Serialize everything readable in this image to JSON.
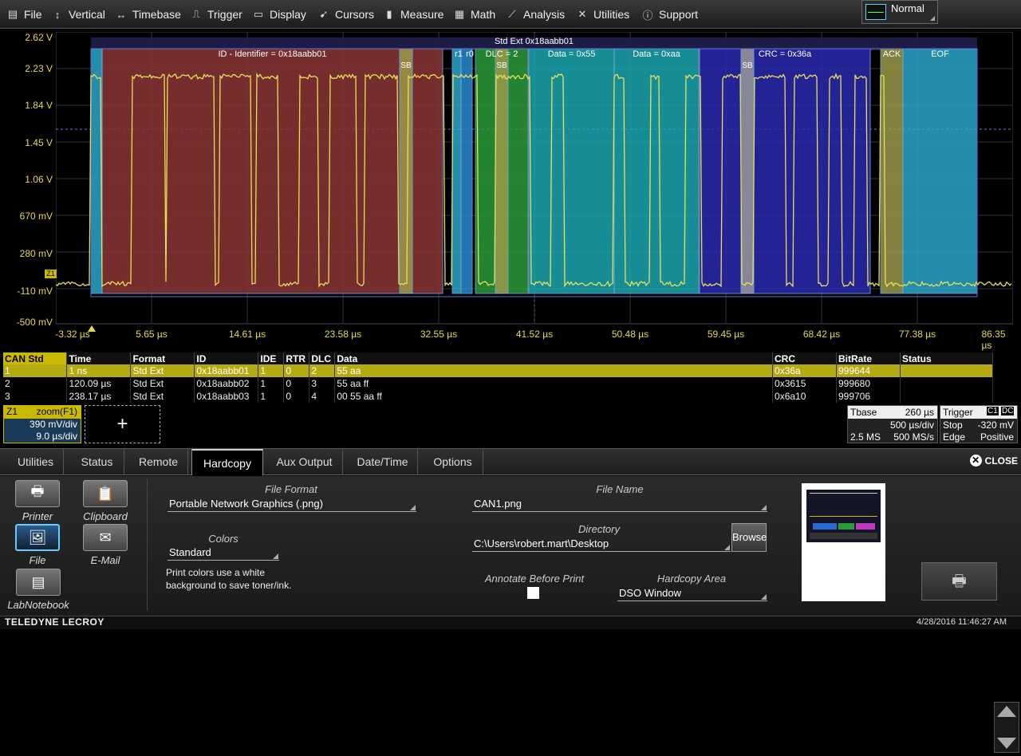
{
  "menu": {
    "items": [
      {
        "label": "File",
        "icon": "file-icon"
      },
      {
        "label": "Vertical",
        "icon": "vertical-icon"
      },
      {
        "label": "Timebase",
        "icon": "timebase-icon"
      },
      {
        "label": "Trigger",
        "icon": "trigger-icon"
      },
      {
        "label": "Display",
        "icon": "display-icon"
      },
      {
        "label": "Cursors",
        "icon": "cursors-icon"
      },
      {
        "label": "Measure",
        "icon": "measure-icon"
      },
      {
        "label": "Math",
        "icon": "math-icon"
      },
      {
        "label": "Analysis",
        "icon": "analysis-icon"
      },
      {
        "label": "Utilities",
        "icon": "utilities-icon"
      },
      {
        "label": "Support",
        "icon": "support-icon"
      }
    ],
    "mode": "Normal"
  },
  "plot": {
    "y_labels": [
      "2.62 V",
      "2.23 V",
      "1.84 V",
      "1.45 V",
      "1.06 V",
      "670 mV",
      "280 mV",
      "-110 mV",
      "-500 mV"
    ],
    "x_labels": [
      "-3.32 µs",
      "5.65 µs",
      "14.61 µs",
      "23.58 µs",
      "32.55 µs",
      "41.52 µs",
      "50.48 µs",
      "59.45 µs",
      "68.42 µs",
      "77.38 µs",
      "86.35 µs"
    ],
    "trace_label": "Z1",
    "frame_label": "Std Ext 0x18aabb01",
    "segments": [
      {
        "label": "",
        "color": "#2aa6c9"
      },
      {
        "label": "ID - Identifier = 0x18aabb01",
        "color": "#8a3535"
      },
      {
        "label": "SB",
        "color": "#9a9a4a"
      },
      {
        "label": "r1",
        "color": "#2aa6c9"
      },
      {
        "label": "r0",
        "color": "#2a88d0"
      },
      {
        "label": "DLC = 2",
        "color": "#2a9a3a"
      },
      {
        "label": "SB",
        "color": "#9a9a4a"
      },
      {
        "label": "Data = 0x55",
        "color": "#1aa6b0"
      },
      {
        "label": "Data = 0xaa",
        "color": "#1aa6b0"
      },
      {
        "label": "CRC = 0x36a",
        "color": "#2a2ab0"
      },
      {
        "label": "SB",
        "color": "#999"
      },
      {
        "label": "ACK",
        "color": "#9a9a4a"
      },
      {
        "label": "EOF",
        "color": "#2aa6c9"
      }
    ]
  },
  "table": {
    "headers": [
      "CAN Std",
      "Time",
      "Format",
      "ID",
      "IDE",
      "RTR",
      "DLC",
      "Data",
      "CRC",
      "BitRate",
      "Status"
    ],
    "rows": [
      [
        "1",
        "1 ns",
        "Std Ext",
        "0x18aabb01",
        "1",
        "0",
        "2",
        "55 aa",
        "0x36a",
        "999644",
        ""
      ],
      [
        "2",
        "120.09 µs",
        "Std Ext",
        "0x18aabb02",
        "1",
        "0",
        "3",
        "55 aa ff",
        "0x3615",
        "999680",
        ""
      ],
      [
        "3",
        "238.17 µs",
        "Std Ext",
        "0x18aabb03",
        "1",
        "0",
        "4",
        "00 55 aa ff",
        "0x6a10",
        "999706",
        ""
      ]
    ]
  },
  "zoom": {
    "name": "Z1",
    "source": "zoom(F1)",
    "vdiv": "390 mV/div",
    "hdiv": "9.0 µs/div"
  },
  "add_label": "+",
  "timebase": {
    "title": "Tbase",
    "offset": "260 µs",
    "per_div": "500 µs/div",
    "samples": "2.5 MS",
    "rate": "500 MS/s"
  },
  "trigger": {
    "title": "Trigger",
    "c1": "C1",
    "dc": "DC",
    "mode": "Stop",
    "level": "-320 mV",
    "type": "Edge",
    "slope": "Positive"
  },
  "tabs": [
    "Utilities",
    "Status",
    "Remote",
    "Hardcopy",
    "Aux Output",
    "Date/Time",
    "Options"
  ],
  "close_label": "CLOSE",
  "hardcopy": {
    "buttons": [
      "Printer",
      "Clipboard",
      "File",
      "E-Mail",
      "LabNotebook"
    ],
    "file_format_label": "File Format",
    "file_format": "Portable Network Graphics (.png)",
    "colors_label": "Colors",
    "colors": "Standard",
    "colors_desc": "Print colors use a white background to save toner/ink.",
    "file_name_label": "File Name",
    "file_name": "CAN1.png",
    "directory_label": "Directory",
    "directory": "C:\\Users\\robert.mart\\Desktop",
    "browse": "Browse",
    "annotate_label": "Annotate Before Print",
    "area_label": "Hardcopy Area",
    "area": "DSO Window"
  },
  "status": {
    "brand": "TELEDYNE LECROY",
    "datetime": "4/28/2016 11:46:27 AM"
  }
}
